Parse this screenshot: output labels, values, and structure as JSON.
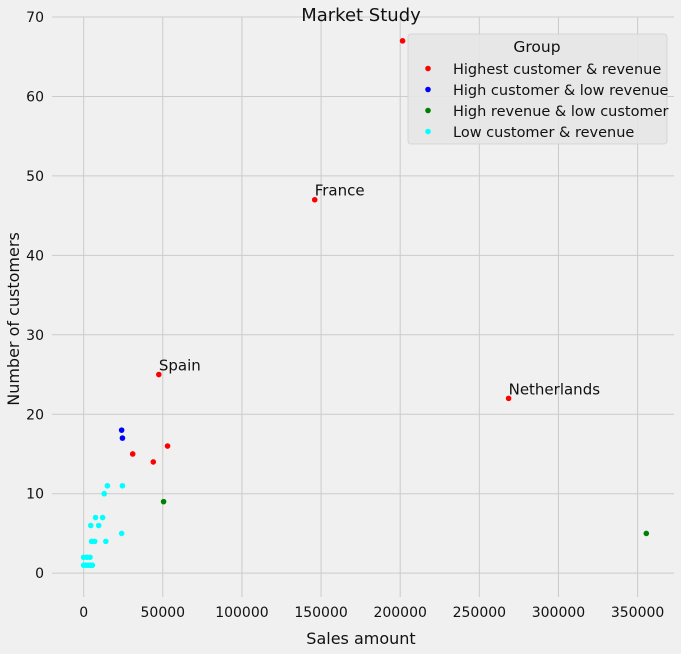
{
  "chart_data": {
    "type": "scatter",
    "title": "Market Study",
    "xlabel": "Sales amount",
    "ylabel": "Number of customers",
    "xlim": [
      -20000,
      373000
    ],
    "ylim": [
      -3,
      70
    ],
    "xticks": [
      0,
      50000,
      100000,
      150000,
      200000,
      250000,
      300000,
      350000
    ],
    "xtick_labels": [
      "0",
      "50000",
      "100000",
      "150000",
      "200000",
      "250000",
      "300000",
      "350000"
    ],
    "yticks": [
      0,
      10,
      20,
      30,
      40,
      50,
      60,
      70
    ],
    "ytick_labels": [
      "0",
      "10",
      "20",
      "30",
      "40",
      "50",
      "60",
      "70"
    ],
    "grid": true,
    "legend_title": "Group",
    "legend_position": "top-right",
    "series": [
      {
        "name": "Highest customer & revenue",
        "color": "#ff0000",
        "points": [
          [
            201500,
            67
          ],
          [
            146000,
            47
          ],
          [
            268500,
            22
          ],
          [
            47500,
            25
          ],
          [
            31000,
            15
          ],
          [
            53000,
            16
          ],
          [
            44000,
            14
          ]
        ]
      },
      {
        "name": "High customer & low revenue",
        "color": "#0000ff",
        "points": [
          [
            24000,
            18
          ],
          [
            24500,
            17
          ]
        ]
      },
      {
        "name": "High revenue & low customer",
        "color": "#008000",
        "points": [
          [
            50500,
            9
          ],
          [
            355500,
            5
          ]
        ]
      },
      {
        "name": "Low customer & revenue",
        "color": "#00ffff",
        "points": [
          [
            24500,
            11
          ],
          [
            15000,
            11
          ],
          [
            13000,
            10
          ],
          [
            12000,
            7
          ],
          [
            7500,
            7
          ],
          [
            4500,
            6
          ],
          [
            9500,
            6
          ],
          [
            5000,
            4
          ],
          [
            7000,
            4
          ],
          [
            14000,
            4
          ],
          [
            24000,
            5
          ],
          [
            0,
            2
          ],
          [
            2000,
            2
          ],
          [
            4000,
            2
          ],
          [
            0,
            1
          ],
          [
            1500,
            1
          ],
          [
            3000,
            1
          ],
          [
            4500,
            1
          ],
          [
            5500,
            1
          ]
        ]
      }
    ],
    "annotations": [
      {
        "text": "France",
        "x": 146000,
        "y": 47
      },
      {
        "text": "Spain",
        "x": 47500,
        "y": 25
      },
      {
        "text": "Netherlands",
        "x": 268500,
        "y": 22
      }
    ]
  }
}
